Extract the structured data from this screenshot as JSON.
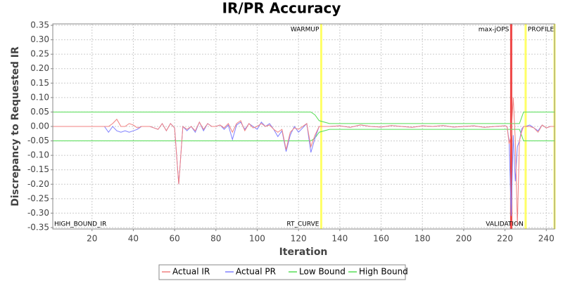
{
  "chart_data": {
    "type": "line",
    "title": "IR/PR Accuracy",
    "x_label": "Iteration",
    "y_label": "Discrepancy to Requested IR",
    "corner_label": "HIGH_BOUND_IR",
    "xlim": [
      1,
      244
    ],
    "ylim": [
      -0.355,
      0.355
    ],
    "xticks": [
      20,
      40,
      60,
      80,
      100,
      120,
      140,
      160,
      180,
      200,
      220,
      240
    ],
    "yticks": [
      0.35,
      {
        "value": 0.3,
        "label": "0.30"
      },
      0.25,
      {
        "value": 0.2,
        "label": "0.20"
      },
      0.15,
      {
        "value": 0.1,
        "label": "0.10"
      },
      0.05,
      {
        "value": 0,
        "label": "0.00"
      },
      -0.05,
      {
        "value": -0.1,
        "label": "-0.10"
      },
      -0.15,
      {
        "value": -0.2,
        "label": "-0.20"
      },
      -0.25,
      {
        "value": -0.3,
        "label": "-0.30"
      },
      -0.35
    ],
    "grid": true,
    "markers": [
      {
        "x": 131,
        "color": "#ffff66",
        "top_label": "WARMUP",
        "bottom_label": "RT_CURVE"
      },
      {
        "x": 223,
        "color": "#ee4444",
        "top_label": "max-jOPS"
      },
      {
        "x": 230,
        "color": "#ffff66",
        "top_label": "PROFILE",
        "bottom_label": "VALIDATION"
      },
      {
        "x": 244,
        "color": "#ffff66"
      }
    ],
    "x": [
      1,
      26,
      28,
      30,
      32,
      34,
      36,
      38,
      40,
      42,
      44,
      46,
      48,
      50,
      52,
      54,
      56,
      58,
      60,
      62,
      64,
      66,
      68,
      70,
      72,
      74,
      76,
      78,
      80,
      82,
      84,
      86,
      88,
      90,
      92,
      94,
      96,
      98,
      100,
      102,
      104,
      106,
      108,
      110,
      112,
      114,
      116,
      118,
      120,
      122,
      124,
      126,
      128,
      130,
      135,
      140,
      145,
      150,
      155,
      160,
      165,
      170,
      175,
      180,
      185,
      190,
      195,
      200,
      205,
      210,
      215,
      220,
      221,
      222,
      223,
      224,
      225,
      226,
      227,
      228,
      229,
      230,
      232,
      234,
      236,
      238,
      240,
      242,
      244
    ],
    "series": [
      {
        "name": "Actual IR",
        "color": "#f08080",
        "values": [
          0,
          0,
          0,
          0.01,
          0.025,
          0,
          0,
          0.01,
          0.005,
          -0.005,
          0,
          0,
          0,
          -0.005,
          -0.01,
          0.01,
          -0.015,
          0.01,
          -0.005,
          -0.2,
          0,
          -0.01,
          0,
          -0.015,
          0.015,
          -0.01,
          0.01,
          0,
          0,
          0.005,
          -0.005,
          0.01,
          -0.02,
          0.01,
          0.02,
          -0.015,
          0.01,
          -0.005,
          0,
          0.01,
          0,
          0.005,
          -0.01,
          -0.02,
          -0.01,
          -0.08,
          -0.02,
          -0.005,
          -0.01,
          0,
          0.01,
          -0.07,
          -0.03,
          0,
          0,
          0.002,
          -0.003,
          0.005,
          0,
          -0.002,
          0.003,
          0,
          -0.003,
          0.002,
          0,
          0.003,
          -0.002,
          0,
          0.002,
          -0.003,
          0,
          0.002,
          0,
          -0.06,
          -0.03,
          0.1,
          -0.05,
          -0.34,
          -0.05,
          -0.02,
          0,
          0,
          0,
          -0.005,
          -0.02,
          0.005,
          -0.005,
          0,
          0
        ]
      },
      {
        "name": "Actual PR",
        "color": "#8080ff",
        "values": [
          0,
          0,
          -0.02,
          0,
          -0.015,
          -0.02,
          -0.015,
          -0.02,
          -0.015,
          -0.01,
          0,
          0,
          0,
          -0.005,
          -0.01,
          0.01,
          -0.015,
          0.01,
          -0.005,
          -0.2,
          0,
          -0.015,
          0,
          -0.02,
          0.015,
          -0.015,
          0.01,
          0,
          0,
          0.005,
          -0.01,
          0.005,
          -0.045,
          0.005,
          0.015,
          -0.01,
          0.01,
          0,
          -0.01,
          0.015,
          0,
          0.01,
          -0.01,
          -0.035,
          -0.015,
          -0.087,
          -0.03,
          0,
          -0.02,
          -0.005,
          0.01,
          -0.09,
          -0.04,
          0,
          0,
          0.002,
          -0.003,
          0.005,
          0,
          -0.002,
          0.003,
          0,
          -0.003,
          0.002,
          0,
          0.003,
          -0.002,
          0,
          0.002,
          -0.003,
          0,
          0.002,
          0,
          -0.05,
          -0.31,
          -0.03,
          -0.19,
          -0.07,
          -0.05,
          -0.01,
          0,
          0,
          0.005,
          -0.005,
          -0.015,
          0.005,
          -0.005,
          0,
          0
        ]
      },
      {
        "name": "Low Bound",
        "color": "#55dd55",
        "values": [
          -0.05,
          -0.05,
          -0.05,
          -0.05,
          -0.05,
          -0.05,
          -0.05,
          -0.05,
          -0.05,
          -0.05,
          -0.05,
          -0.05,
          -0.05,
          -0.05,
          -0.05,
          -0.05,
          -0.05,
          -0.05,
          -0.05,
          -0.05,
          -0.05,
          -0.05,
          -0.05,
          -0.05,
          -0.05,
          -0.05,
          -0.05,
          -0.05,
          -0.05,
          -0.05,
          -0.05,
          -0.05,
          -0.05,
          -0.05,
          -0.05,
          -0.05,
          -0.05,
          -0.05,
          -0.05,
          -0.05,
          -0.05,
          -0.05,
          -0.05,
          -0.05,
          -0.05,
          -0.05,
          -0.05,
          -0.05,
          -0.05,
          -0.05,
          -0.05,
          -0.05,
          -0.04,
          -0.02,
          -0.01,
          -0.01,
          -0.01,
          -0.01,
          -0.01,
          -0.01,
          -0.01,
          -0.01,
          -0.01,
          -0.01,
          -0.01,
          -0.01,
          -0.01,
          -0.01,
          -0.01,
          -0.01,
          -0.01,
          -0.01,
          -0.01,
          -0.01,
          -0.01,
          -0.01,
          -0.01,
          -0.01,
          -0.01,
          -0.03,
          -0.05,
          -0.05,
          -0.05,
          -0.05,
          -0.05,
          -0.05,
          -0.05,
          -0.05,
          -0.05
        ]
      },
      {
        "name": "High Bound",
        "color": "#55dd55",
        "values": [
          0.05,
          0.05,
          0.05,
          0.05,
          0.05,
          0.05,
          0.05,
          0.05,
          0.05,
          0.05,
          0.05,
          0.05,
          0.05,
          0.05,
          0.05,
          0.05,
          0.05,
          0.05,
          0.05,
          0.05,
          0.05,
          0.05,
          0.05,
          0.05,
          0.05,
          0.05,
          0.05,
          0.05,
          0.05,
          0.05,
          0.05,
          0.05,
          0.05,
          0.05,
          0.05,
          0.05,
          0.05,
          0.05,
          0.05,
          0.05,
          0.05,
          0.05,
          0.05,
          0.05,
          0.05,
          0.05,
          0.05,
          0.05,
          0.05,
          0.05,
          0.05,
          0.05,
          0.04,
          0.02,
          0.01,
          0.01,
          0.01,
          0.01,
          0.01,
          0.01,
          0.01,
          0.01,
          0.01,
          0.01,
          0.01,
          0.01,
          0.01,
          0.01,
          0.01,
          0.01,
          0.01,
          0.01,
          0.01,
          0.01,
          0.01,
          0.01,
          0.01,
          0.01,
          0.01,
          0.03,
          0.05,
          0.05,
          0.05,
          0.05,
          0.05,
          0.05,
          0.05,
          0.05,
          0.05
        ]
      }
    ]
  }
}
